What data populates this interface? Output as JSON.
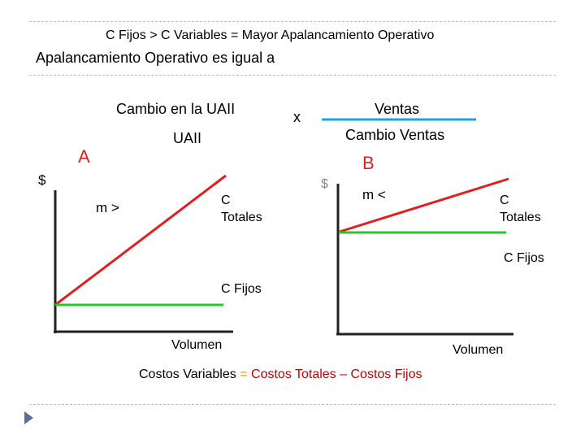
{
  "header": {
    "title": "C Fijos  >  C Variables = Mayor Apalancamiento Operativo",
    "subtitle": "Apalancamiento Operativo es igual a"
  },
  "formula": {
    "numerator_left": "Cambio en la UAII",
    "denominator_left": "UAII",
    "operator": "x",
    "numerator_right": "Ventas",
    "denominator_right": "Cambio Ventas"
  },
  "graph_a": {
    "label": "A",
    "y_axis": "$",
    "slope_label": "m >",
    "total_costs_label": "C\nTotales",
    "fixed_costs_label": "C Fijos",
    "x_axis": "Volumen"
  },
  "graph_b": {
    "label": "B",
    "y_axis": "$",
    "slope_label": "m <",
    "total_costs_label": "C\nTotales",
    "fixed_costs_label": "C Fijos",
    "x_axis": "Volumen"
  },
  "footer": {
    "part1": "Costos Variables",
    "eq": "=",
    "part2": "Costos Totales",
    "minus": "–",
    "part3": "Costos Fijos"
  },
  "colors": {
    "total_cost_line": "#e02020",
    "fixed_cost_line": "#22cc22",
    "axis": "#222222",
    "formula_bar": "#1aa3e8",
    "label_ab": "#e02020",
    "footer_highlight": "#c00000",
    "footer_eq": "#c9a200"
  },
  "nav_icon": "play-triangle-icon"
}
